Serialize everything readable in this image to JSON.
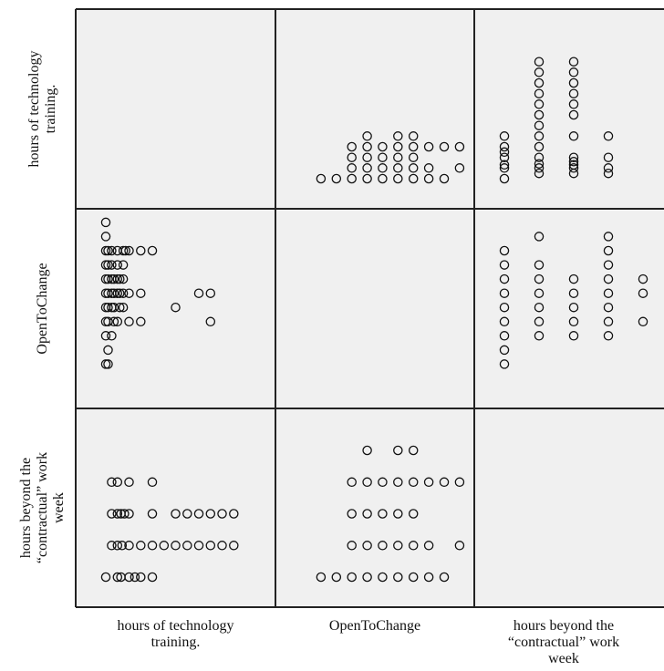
{
  "chart_data": {
    "type": "scatter",
    "variables": [
      [
        "hours of technology",
        "training."
      ],
      [
        "OpenToChange"
      ],
      [
        "hours beyond the",
        "“contractual” work",
        "week"
      ]
    ],
    "ranges": {
      "training": [
        0,
        12
      ],
      "open": [
        0,
        9
      ],
      "hours": [
        0,
        4
      ]
    },
    "grid": false,
    "pairs": {
      "open_hours": [
        [
          1,
          0
        ],
        [
          2,
          0
        ],
        [
          3,
          0
        ],
        [
          3,
          1
        ],
        [
          3,
          2
        ],
        [
          3,
          3
        ],
        [
          4,
          0
        ],
        [
          4,
          1
        ],
        [
          4,
          2
        ],
        [
          4,
          3
        ],
        [
          4,
          4
        ],
        [
          5,
          0
        ],
        [
          5,
          1
        ],
        [
          5,
          2
        ],
        [
          5,
          3
        ],
        [
          6,
          0
        ],
        [
          6,
          1
        ],
        [
          6,
          2
        ],
        [
          6,
          3
        ],
        [
          6,
          4
        ],
        [
          7,
          0
        ],
        [
          7,
          1
        ],
        [
          7,
          2
        ],
        [
          7,
          3
        ],
        [
          7,
          4
        ],
        [
          8,
          0
        ],
        [
          8,
          1
        ],
        [
          8,
          3
        ],
        [
          9,
          0
        ],
        [
          9,
          3
        ],
        [
          10,
          1
        ],
        [
          10,
          3
        ]
      ],
      "training_open": [
        [
          0,
          1
        ],
        [
          0,
          3
        ],
        [
          0,
          4
        ],
        [
          0,
          5
        ],
        [
          0,
          6
        ],
        [
          0,
          7
        ],
        [
          0,
          8
        ],
        [
          0,
          9
        ],
        [
          0,
          10
        ],
        [
          0,
          11
        ],
        [
          0.2,
          1
        ],
        [
          0.2,
          2
        ],
        [
          0.2,
          4
        ],
        [
          0.2,
          5
        ],
        [
          0.2,
          6
        ],
        [
          0.2,
          7
        ],
        [
          0.2,
          8
        ],
        [
          0.2,
          9
        ],
        [
          0.5,
          3
        ],
        [
          0.5,
          5
        ],
        [
          0.5,
          6
        ],
        [
          0.5,
          7
        ],
        [
          0.5,
          8
        ],
        [
          0.5,
          9
        ],
        [
          0.7,
          4
        ],
        [
          0.7,
          5
        ],
        [
          0.7,
          6
        ],
        [
          0.7,
          7
        ],
        [
          1,
          4
        ],
        [
          1,
          6
        ],
        [
          1,
          7
        ],
        [
          1,
          8
        ],
        [
          1,
          9
        ],
        [
          1.2,
          5
        ],
        [
          1.2,
          6
        ],
        [
          1.2,
          7
        ],
        [
          1.5,
          5
        ],
        [
          1.5,
          6
        ],
        [
          1.5,
          7
        ],
        [
          1.5,
          8
        ],
        [
          1.5,
          9
        ],
        [
          1.7,
          9
        ],
        [
          2,
          4
        ],
        [
          2,
          6
        ],
        [
          2,
          9
        ],
        [
          3,
          4
        ],
        [
          3,
          6
        ],
        [
          3,
          9
        ],
        [
          4,
          9
        ],
        [
          6,
          5
        ],
        [
          8,
          6
        ],
        [
          9,
          6
        ],
        [
          9,
          4
        ]
      ],
      "hours_training": [
        [
          0,
          0
        ],
        [
          0,
          1
        ],
        [
          0,
          1.3
        ],
        [
          0,
          2
        ],
        [
          0,
          2.5
        ],
        [
          0,
          3
        ],
        [
          0,
          4
        ],
        [
          1,
          0.5
        ],
        [
          1,
          1
        ],
        [
          1,
          1.4
        ],
        [
          1,
          2
        ],
        [
          1,
          3
        ],
        [
          1,
          4
        ],
        [
          1,
          5
        ],
        [
          1,
          6
        ],
        [
          1,
          7
        ],
        [
          1,
          8
        ],
        [
          1,
          9
        ],
        [
          1,
          10
        ],
        [
          1,
          11
        ],
        [
          2,
          0.5
        ],
        [
          2,
          1
        ],
        [
          2,
          1.3
        ],
        [
          2,
          1.6
        ],
        [
          2,
          2
        ],
        [
          2,
          4
        ],
        [
          2,
          6
        ],
        [
          2,
          7
        ],
        [
          2,
          8
        ],
        [
          2,
          9
        ],
        [
          2,
          10
        ],
        [
          2,
          11
        ],
        [
          3,
          0.5
        ],
        [
          3,
          1
        ],
        [
          3,
          2
        ],
        [
          3,
          4
        ]
      ]
    }
  }
}
